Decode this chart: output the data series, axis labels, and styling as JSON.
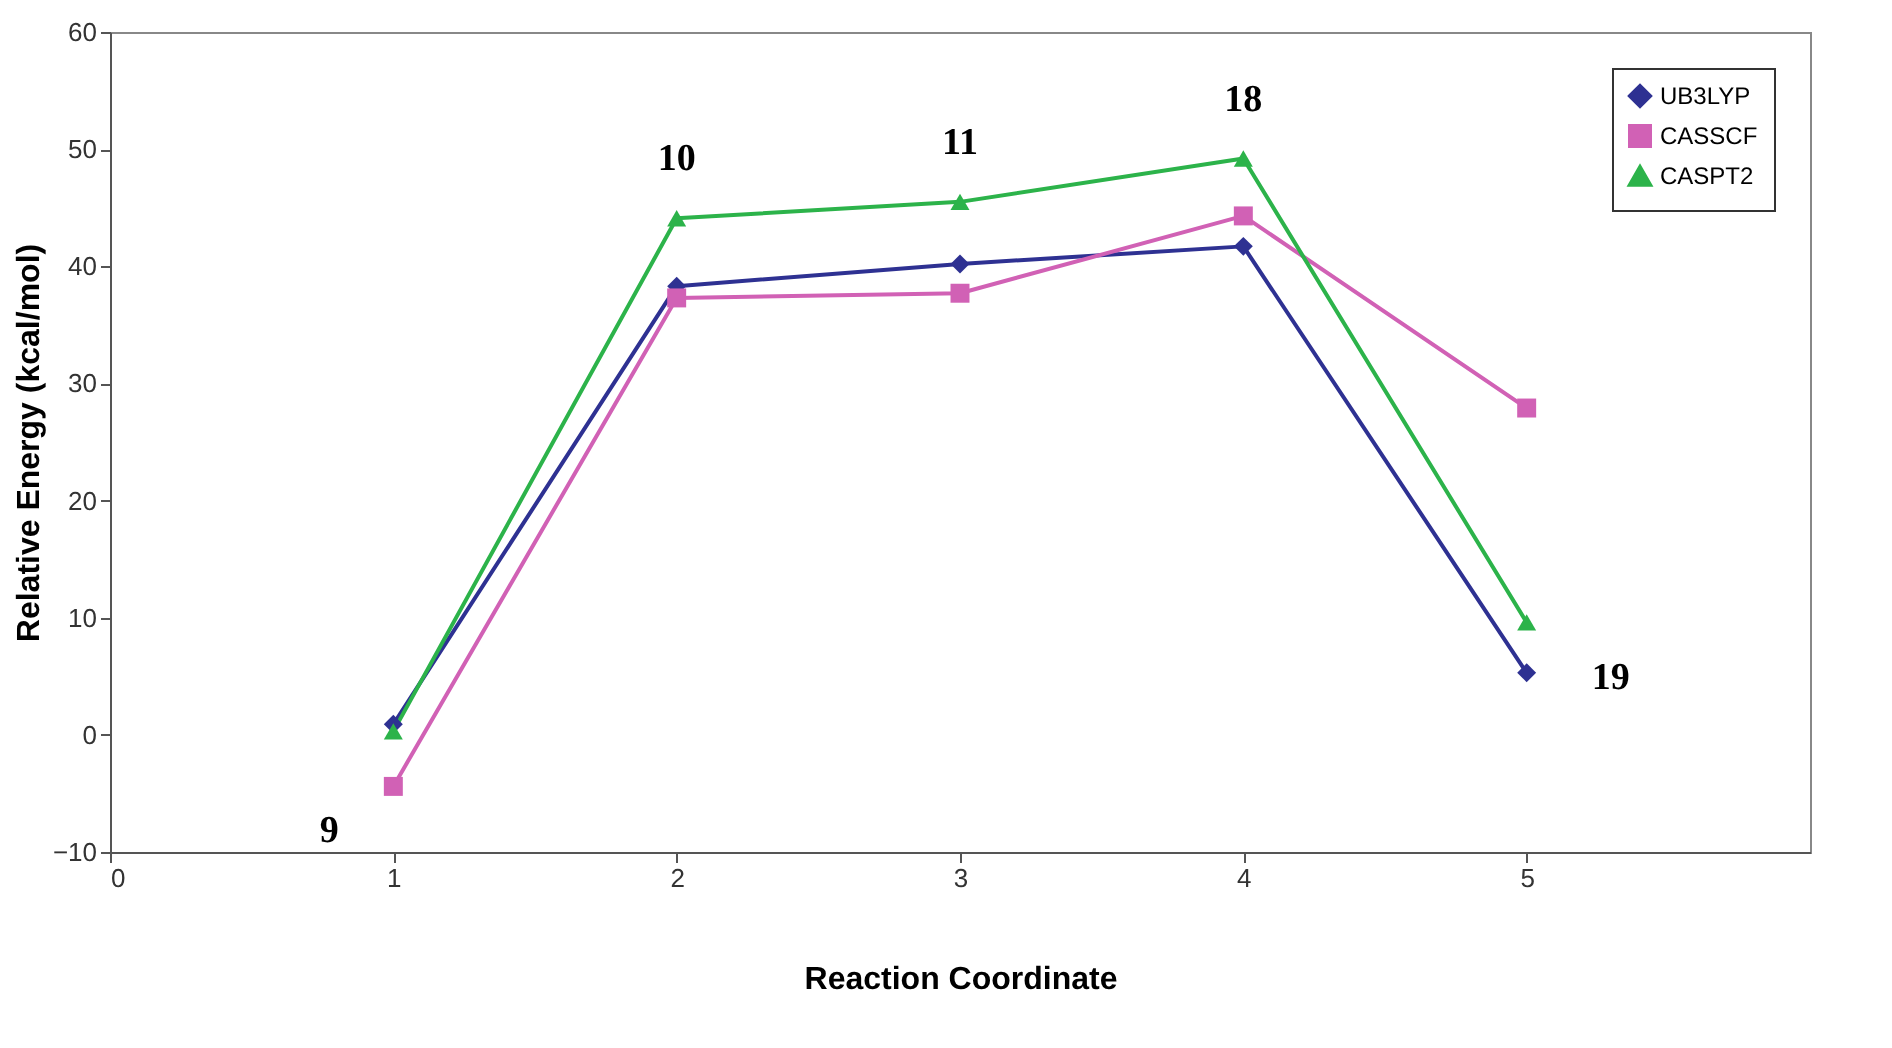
{
  "chart_data": {
    "type": "line",
    "xlabel": "Reaction Coordinate",
    "ylabel": "Relative Energy (kcal/mol)",
    "x": [
      1,
      2,
      3,
      4,
      5
    ],
    "series": [
      {
        "name": "UB3LYP",
        "color": "#2e3192",
        "marker": "diamond",
        "values": [
          0.9,
          38.3,
          40.2,
          41.7,
          5.3
        ]
      },
      {
        "name": "CASSCF",
        "color": "#d161b5",
        "marker": "square",
        "values": [
          -4.4,
          37.3,
          37.7,
          44.3,
          27.9
        ]
      },
      {
        "name": "CASPT2",
        "color": "#2cb34a",
        "marker": "triangle",
        "values": [
          0.3,
          44.1,
          45.5,
          49.2,
          9.6
        ]
      }
    ],
    "xlim": [
      0,
      6
    ],
    "xticks": [
      0,
      1,
      2,
      3,
      4,
      5
    ],
    "ylim": [
      -10,
      60
    ],
    "yticks": [
      -10,
      0,
      10,
      20,
      30,
      40,
      50,
      60
    ],
    "grid": false,
    "legend": "top right",
    "line_style": "solid",
    "annotations": [
      {
        "text": "9",
        "x": 1,
        "y": -4.4
      },
      {
        "text": "10",
        "x": 2,
        "y": 44.1
      },
      {
        "text": "11",
        "x": 3,
        "y": 45.5
      },
      {
        "text": "18",
        "x": 4,
        "y": 49.2
      },
      {
        "text": "19",
        "x": 5,
        "y": 5.3
      }
    ]
  }
}
